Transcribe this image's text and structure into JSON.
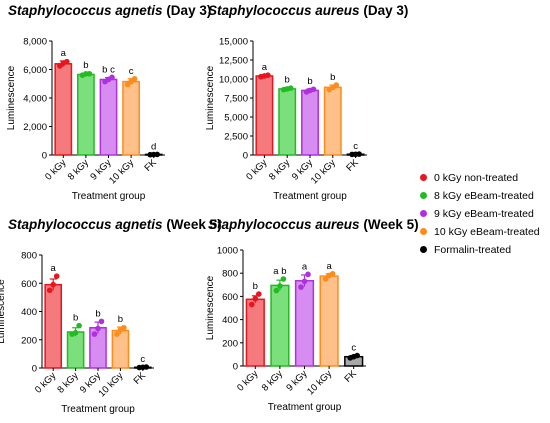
{
  "chart_data": [
    {
      "type": "bar",
      "title_species": "Staphylococcus agnetis",
      "title_time": "(Day 3)",
      "xlabel": "Treatment group",
      "ylabel": "Luminescence",
      "categories": [
        "0 kGy",
        "8 kGy",
        "9 kGy",
        "10 kGy",
        "FK"
      ],
      "values": [
        6400,
        5650,
        5300,
        5150,
        30
      ],
      "error": [
        200,
        90,
        130,
        200,
        15
      ],
      "points": [
        [
          6250,
          6450,
          6550
        ],
        [
          5600,
          5700,
          5700
        ],
        [
          5150,
          5300,
          5450
        ],
        [
          4950,
          5150,
          5350
        ],
        [
          20,
          30,
          40
        ]
      ],
      "letters": [
        "a",
        "b",
        "b c",
        "c",
        "d"
      ],
      "ylim": [
        0,
        8000
      ],
      "yticks": [
        0,
        2000,
        4000,
        6000,
        8000
      ],
      "ytick_labels": [
        "0",
        "2,000",
        "4,000",
        "6,000",
        "8,000"
      ]
    },
    {
      "type": "bar",
      "title_species": "Staphylococcus aureus",
      "title_time": "(Day 3)",
      "xlabel": "Treatment group",
      "ylabel": "Luminescence",
      "categories": [
        "0 kGy",
        "8 kGy",
        "9 kGy",
        "10 kGy",
        "FK"
      ],
      "values": [
        10400,
        8700,
        8500,
        8900,
        100
      ],
      "error": [
        150,
        150,
        200,
        300,
        30
      ],
      "points": [
        [
          10300,
          10400,
          10500
        ],
        [
          8600,
          8700,
          8800
        ],
        [
          8300,
          8500,
          8650
        ],
        [
          8600,
          8900,
          9200
        ],
        [
          80,
          100,
          120
        ]
      ],
      "letters": [
        "a",
        "b",
        "b",
        "b",
        "c"
      ],
      "ylim": [
        0,
        15000
      ],
      "yticks": [
        0,
        2500,
        5000,
        7500,
        10000,
        12500,
        15000
      ],
      "ytick_labels": [
        "0",
        "2,500",
        "5,000",
        "7,500",
        "10,000",
        "12,500",
        "15,000"
      ]
    },
    {
      "type": "bar",
      "title_species": "Staphylococcus agnetis",
      "title_time": "(Week 5)",
      "xlabel": "Treatment group",
      "ylabel": "Luminescence",
      "categories": [
        "0 kGy",
        "8 kGy",
        "9 kGy",
        "10 kGy",
        "FK"
      ],
      "values": [
        590,
        255,
        285,
        265,
        5
      ],
      "error": [
        40,
        30,
        40,
        25,
        3
      ],
      "points": [
        [
          550,
          590,
          650
        ],
        [
          240,
          250,
          300
        ],
        [
          240,
          280,
          330
        ],
        [
          240,
          270,
          285
        ],
        [
          3,
          5,
          7
        ]
      ],
      "letters": [
        "a",
        "b",
        "b",
        "b",
        "c"
      ],
      "ylim": [
        0,
        800
      ],
      "yticks": [
        0,
        200,
        400,
        600,
        800
      ],
      "ytick_labels": [
        "0",
        "200",
        "400",
        "600",
        "800"
      ]
    },
    {
      "type": "bar",
      "title_species": "Staphylococcus aureus",
      "title_time": "(Week 5)",
      "xlabel": "Treatment group",
      "ylabel": "Luminescence",
      "categories": [
        "0 kGy",
        "8 kGy",
        "9 kGy",
        "10 kGy",
        "FK"
      ],
      "values": [
        575,
        695,
        735,
        775,
        80
      ],
      "error": [
        30,
        45,
        50,
        20,
        10
      ],
      "points": [
        [
          530,
          580,
          620
        ],
        [
          650,
          690,
          750
        ],
        [
          680,
          730,
          790
        ],
        [
          750,
          780,
          795
        ],
        [
          70,
          80,
          90
        ]
      ],
      "letters": [
        "b",
        "a b",
        "a",
        "a",
        "c"
      ],
      "ylim": [
        0,
        1000
      ],
      "yticks": [
        0,
        200,
        400,
        600,
        800,
        1000
      ],
      "ytick_labels": [
        "0",
        "200",
        "400",
        "600",
        "800",
        "1000"
      ]
    }
  ],
  "legend": [
    {
      "label": "0 kGy non-treated",
      "color": "#e8141e"
    },
    {
      "label": "8 kGy eBeam-treated",
      "color": "#22bb22"
    },
    {
      "label": "9 kGy eBeam-treated",
      "color": "#b030e0"
    },
    {
      "label": "10 kGy eBeam-treated",
      "color": "#ff8c1a"
    },
    {
      "label": "Formalin-treated",
      "color": "#000000"
    }
  ],
  "colors": {
    "bar_fills": [
      "#f47a7e",
      "#7be07b",
      "#d68cf0",
      "#ffc08a",
      "#a8a8a8"
    ],
    "bar_strokes": [
      "#e8141e",
      "#22bb22",
      "#b030e0",
      "#ff8c1a",
      "#000000"
    ]
  }
}
